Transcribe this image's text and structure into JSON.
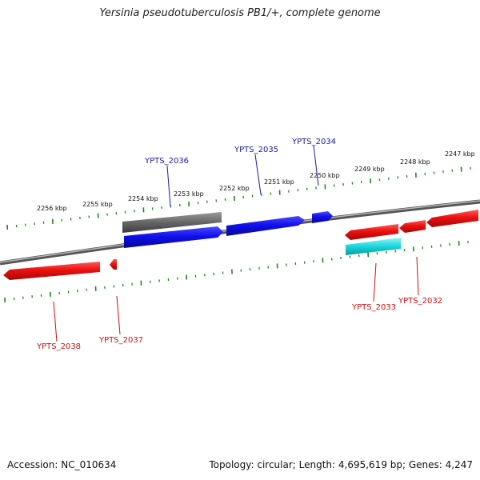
{
  "title": "Yersinia pseudotuberculosis PB1/+, complete genome",
  "footer": {
    "accession": "Accession: NC_010634",
    "summary": "Topology: circular; Length: 4,695,619 bp; Genes: 4,247"
  },
  "colors": {
    "backbone": "#8a8a8a",
    "tick": "#1a8a1a",
    "forward_gene": "#1010ee",
    "reverse_gene": "#ee1010",
    "gray_feature": "#666666",
    "cyan_feature": "#19d6dc",
    "forward_label": "#1a1aaa",
    "reverse_label": "#cc1111"
  },
  "kbp_labels": [
    "2256 kbp",
    "2255 kbp",
    "2254 kbp",
    "2253 kbp",
    "2252 kbp",
    "2251 kbp",
    "2250 kbp",
    "2249 kbp",
    "2248 kbp",
    "2247 kbp"
  ],
  "forward_gene_labels": [
    "YPTS_2036",
    "YPTS_2035",
    "YPTS_2034"
  ],
  "reverse_gene_labels": [
    "YPTS_2038",
    "YPTS_2037",
    "YPTS_2033",
    "YPTS_2032"
  ]
}
